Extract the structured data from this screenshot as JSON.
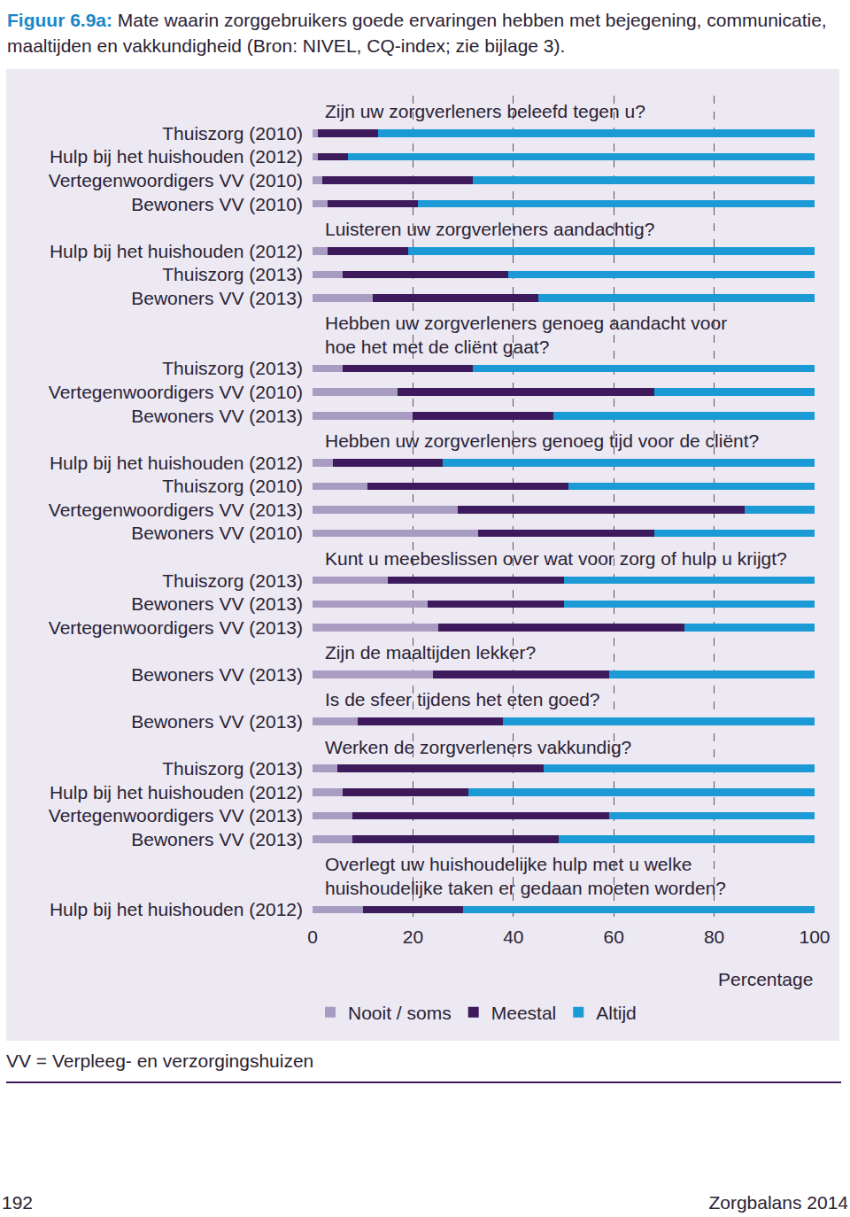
{
  "chart_data": {
    "type": "bar",
    "orientation": "horizontal",
    "stacked": true,
    "grid": true,
    "legend": "bottom",
    "title": "Figuur 6.9a: Mate waarin zorggebruikers goede ervaringen hebben met bejegening, communicatie, maaltijden en vakkundigheid (Bron: NIVEL, CQ-index; zie bijlage 3).",
    "xlabel": "Percentage",
    "note": "VV = Verpleeg- en verzorgingshuizen",
    "page": "192",
    "footer": "Zorgbalans 2014",
    "xlim": [
      0,
      100
    ],
    "xticks": [
      0,
      20,
      40,
      60,
      80,
      100
    ],
    "categories": [
      "Thuiszorg (2010)",
      "Hulp bij het huishouden (2012)",
      "Vertegenwoordigers VV (2010)",
      "Bewoners VV (2010)",
      "Hulp bij het huishouden (2012)",
      "Thuiszorg (2013)",
      "Bewoners VV (2013)",
      "Thuiszorg (2013)",
      "Vertegenwoordigers VV (2010)",
      "Bewoners VV (2013)",
      "Hulp bij het huishouden (2012)",
      "Thuiszorg (2010)",
      "Vertegenwoordigers VV (2013)",
      "Bewoners VV (2010)",
      "Thuiszorg (2013)",
      "Bewoners VV (2013)",
      "Vertegenwoordigers VV (2013)",
      "Bewoners VV (2013)",
      "Bewoners VV (2013)",
      "Thuiszorg (2013)",
      "Hulp bij het huishouden (2012)",
      "Vertegenwoordigers VV (2013)",
      "Bewoners VV (2013)",
      "Hulp bij het huishouden (2012)"
    ],
    "series": [
      {
        "name": "Nooit / soms",
        "color": "#a99cc2",
        "values": [
          1,
          1,
          2,
          3,
          3,
          6,
          12,
          6,
          17,
          20,
          4,
          11,
          29,
          33,
          15,
          23,
          25,
          24,
          9,
          5,
          6,
          8,
          8,
          10
        ]
      },
      {
        "name": "Meestal",
        "color": "#3d1a5b",
        "values": [
          12,
          6,
          30,
          18,
          16,
          33,
          33,
          26,
          51,
          28,
          22,
          40,
          57,
          35,
          35,
          27,
          49,
          35,
          29,
          41,
          25,
          51,
          41,
          20
        ]
      },
      {
        "name": "Altijd",
        "color": "#1c9ad6",
        "values": [
          87,
          93,
          68,
          79,
          81,
          61,
          55,
          68,
          32,
          52,
          74,
          49,
          14,
          32,
          50,
          50,
          26,
          41,
          62,
          54,
          69,
          41,
          51,
          70
        ]
      }
    ],
    "annotations": [
      {
        "text": "Zijn uw zorgverleners beleefd tegen u?",
        "y": 0
      },
      {
        "text": "Luisteren uw zorgverleners aandachtig?",
        "y": 4
      },
      {
        "text": "Hebben uw zorgverleners genoeg aandacht voor\nhoe het met de cliënt gaat?",
        "y": 7
      },
      {
        "text": "Hebben uw zorgverleners genoeg tijd voor de cliënt?",
        "y": 10
      },
      {
        "text": "Kunt u meebeslissen over wat voor zorg of hulp u krijgt?",
        "y": 14
      },
      {
        "text": "Zijn de maaltijden lekker?",
        "y": 17
      },
      {
        "text": "Is de sfeer tijdens het eten goed?",
        "y": 18
      },
      {
        "text": "Werken de zorgverleners vakkundig?",
        "y": 19
      },
      {
        "text": "Overlegt uw huishoudelijke hulp met u welke\nhuishoudelijke taken er gedaan moeten worden?",
        "y": 23
      }
    ]
  }
}
